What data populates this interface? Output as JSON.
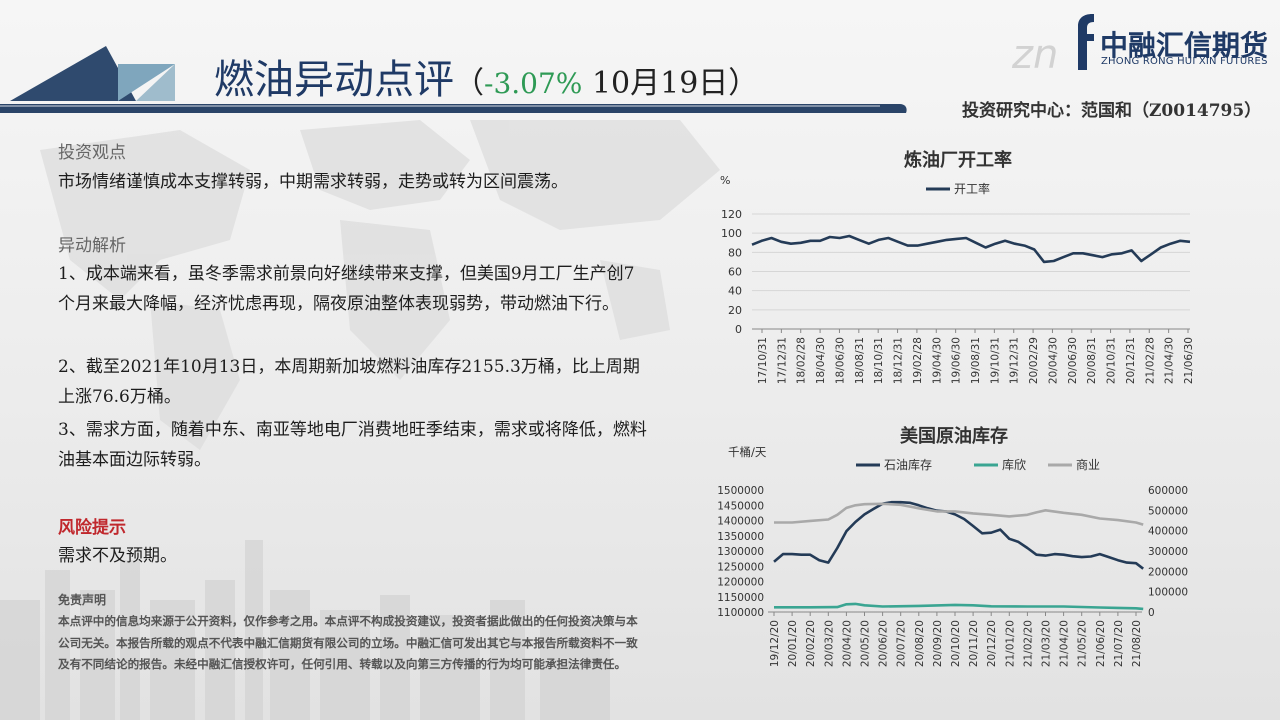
{
  "header": {
    "title_main": "燃油异动点评",
    "paren_open": "（",
    "change_pct": "-3.07%",
    "date": " 10月19日）",
    "brand_cn": "中融汇信期货",
    "brand_en": "ZHONG RONG HUI XIN FUTURES",
    "author": "投资研究中心：范国和（Z0014795）"
  },
  "view": {
    "heading": "投资观点",
    "text": "市场情绪谨慎成本支撑转弱，中期需求转弱，走势或转为区间震荡。"
  },
  "analysis": {
    "heading": "异动解析",
    "items": [
      "1、成本端来看，虽冬季需求前景向好继续带来支撑，但美国9月工厂生产创7个月来最大降幅，经济忧虑再现，隔夜原油整体表现弱势，带动燃油下行。",
      "2、截至2021年10月13日，本周期新加坡燃料油库存2155.3万桶，比上周期上涨76.6万桶。",
      "3、需求方面，随着中东、南亚等地电厂消费地旺季结束，需求或将降低，燃料油基本面边际转弱。"
    ]
  },
  "risk": {
    "heading": "风险提示",
    "text": "需求不及预期。"
  },
  "disclaimer": {
    "heading": "免责声明",
    "text": "本点评中的信息均来源于公开资料，仅作参考之用。本点评不构成投资建议，投资者据此做出的任何投资决策与本公司无关。本报告所载的观点不代表中融汇信期货有限公司的立场。中融汇信可发出其它与本报告所载资料不一致及有不同结论的报告。未经中融汇信授权许可，任何引用、转载以及向第三方传播的行为均可能承担法律责任。"
  },
  "colors": {
    "navy": "#1f3a66",
    "risk_red": "#c0282d",
    "down_green": "#2e9a55",
    "line_dark": "#243b57",
    "line_teal": "#3aa592",
    "line_gray": "#a9a9a9"
  },
  "chart_data": [
    {
      "type": "line",
      "title": "炼油厂开工率",
      "ylabel": "%",
      "ylim": [
        0,
        120
      ],
      "yticks": [
        0,
        20,
        40,
        60,
        80,
        100,
        120
      ],
      "legend_position": "top",
      "x_tick_labels": [
        "17/10/31",
        "17/12/31",
        "18/02/28",
        "18/04/30",
        "18/06/30",
        "18/08/31",
        "18/10/31",
        "18/12/31",
        "19/02/28",
        "19/04/30",
        "19/06/30",
        "19/08/31",
        "19/10/31",
        "19/12/31",
        "20/02/29",
        "20/04/30",
        "20/06/30",
        "20/08/31",
        "20/10/31",
        "20/12/31",
        "21/02/28",
        "21/04/30",
        "21/06/30"
      ],
      "series": [
        {
          "name": "开工率",
          "color": "#243b57",
          "x_index": [
            0,
            1,
            2,
            3,
            4,
            5,
            6,
            7,
            8,
            9,
            10,
            11,
            12,
            13,
            14,
            15,
            16,
            17,
            18,
            19,
            20,
            21,
            22,
            23,
            24,
            25,
            26,
            27,
            28,
            29,
            30,
            31,
            32,
            33,
            34,
            35,
            36,
            37,
            38,
            39,
            40,
            41,
            42,
            43,
            44,
            45
          ],
          "values": [
            88,
            92,
            95,
            91,
            89,
            90,
            92,
            92,
            96,
            95,
            97,
            93,
            89,
            93,
            95,
            91,
            87,
            87,
            89,
            91,
            93,
            94,
            95,
            90,
            85,
            89,
            92,
            89,
            87,
            83,
            70,
            71,
            75,
            79,
            79,
            77,
            75,
            78,
            79,
            82,
            71,
            78,
            85,
            89,
            92,
            91
          ]
        }
      ]
    },
    {
      "type": "line",
      "title": "美国原油库存",
      "ylabel": "千桶/天",
      "ylim_left": [
        1100000,
        1500000
      ],
      "yticks_left": [
        1100000,
        1150000,
        1200000,
        1250000,
        1300000,
        1350000,
        1400000,
        1450000,
        1500000
      ],
      "ylim_right": [
        0,
        600000
      ],
      "yticks_right": [
        0,
        100000,
        200000,
        300000,
        400000,
        500000,
        600000
      ],
      "legend_position": "top",
      "x_tick_labels": [
        "19/12/20",
        "20/01/20",
        "20/02/20",
        "20/03/20",
        "20/04/20",
        "20/05/20",
        "20/06/20",
        "20/07/20",
        "20/08/20",
        "20/09/20",
        "20/10/20",
        "20/11/20",
        "20/12/20",
        "21/01/20",
        "21/02/20",
        "21/03/20",
        "21/04/20",
        "21/05/20",
        "21/06/20",
        "21/07/20",
        "21/08/20"
      ],
      "series": [
        {
          "name": "石油库存",
          "axis": "left",
          "color": "#243b57",
          "x_index": [
            0,
            0.5,
            1,
            1.5,
            2,
            2.5,
            3,
            3.5,
            4,
            4.5,
            5,
            5.5,
            6,
            6.5,
            7,
            7.5,
            8,
            8.5,
            9,
            9.5,
            10,
            10.5,
            11,
            11.5,
            12,
            12.5,
            13,
            13.5,
            14,
            14.5,
            15,
            15.5,
            16,
            16.5,
            17,
            17.5,
            18,
            18.5,
            19,
            19.5,
            20,
            20.4
          ],
          "values": [
            1265000,
            1290000,
            1290000,
            1288000,
            1288000,
            1270000,
            1262000,
            1310000,
            1365000,
            1395000,
            1420000,
            1438000,
            1455000,
            1460000,
            1460000,
            1458000,
            1450000,
            1440000,
            1432000,
            1430000,
            1420000,
            1405000,
            1382000,
            1358000,
            1360000,
            1370000,
            1340000,
            1330000,
            1310000,
            1288000,
            1285000,
            1290000,
            1288000,
            1283000,
            1280000,
            1282000,
            1290000,
            1280000,
            1270000,
            1262000,
            1260000,
            1242000
          ]
        },
        {
          "name": "库欣",
          "axis": "right",
          "color": "#3aa592",
          "x_index": [
            0,
            2,
            3.5,
            4,
            4.5,
            5,
            6,
            8,
            10,
            11,
            12,
            14,
            16,
            18,
            19,
            20,
            20.4
          ],
          "values": [
            23000,
            23000,
            24000,
            38000,
            40000,
            33000,
            27000,
            30000,
            35000,
            33000,
            28000,
            27000,
            27000,
            22000,
            20000,
            18000,
            15000
          ]
        },
        {
          "name": "商业",
          "axis": "right",
          "color": "#a9a9a9",
          "x_index": [
            0,
            1,
            2,
            3,
            3.5,
            4,
            4.5,
            5,
            6,
            7,
            8,
            9,
            10,
            11,
            12,
            13,
            14,
            14.5,
            15,
            16,
            17,
            18,
            19,
            20,
            20.4
          ],
          "values": [
            440000,
            440000,
            448000,
            455000,
            478000,
            512000,
            525000,
            530000,
            532000,
            527000,
            510000,
            495000,
            495000,
            485000,
            478000,
            470000,
            478000,
            490000,
            500000,
            488000,
            478000,
            460000,
            452000,
            440000,
            430000
          ]
        }
      ]
    }
  ]
}
